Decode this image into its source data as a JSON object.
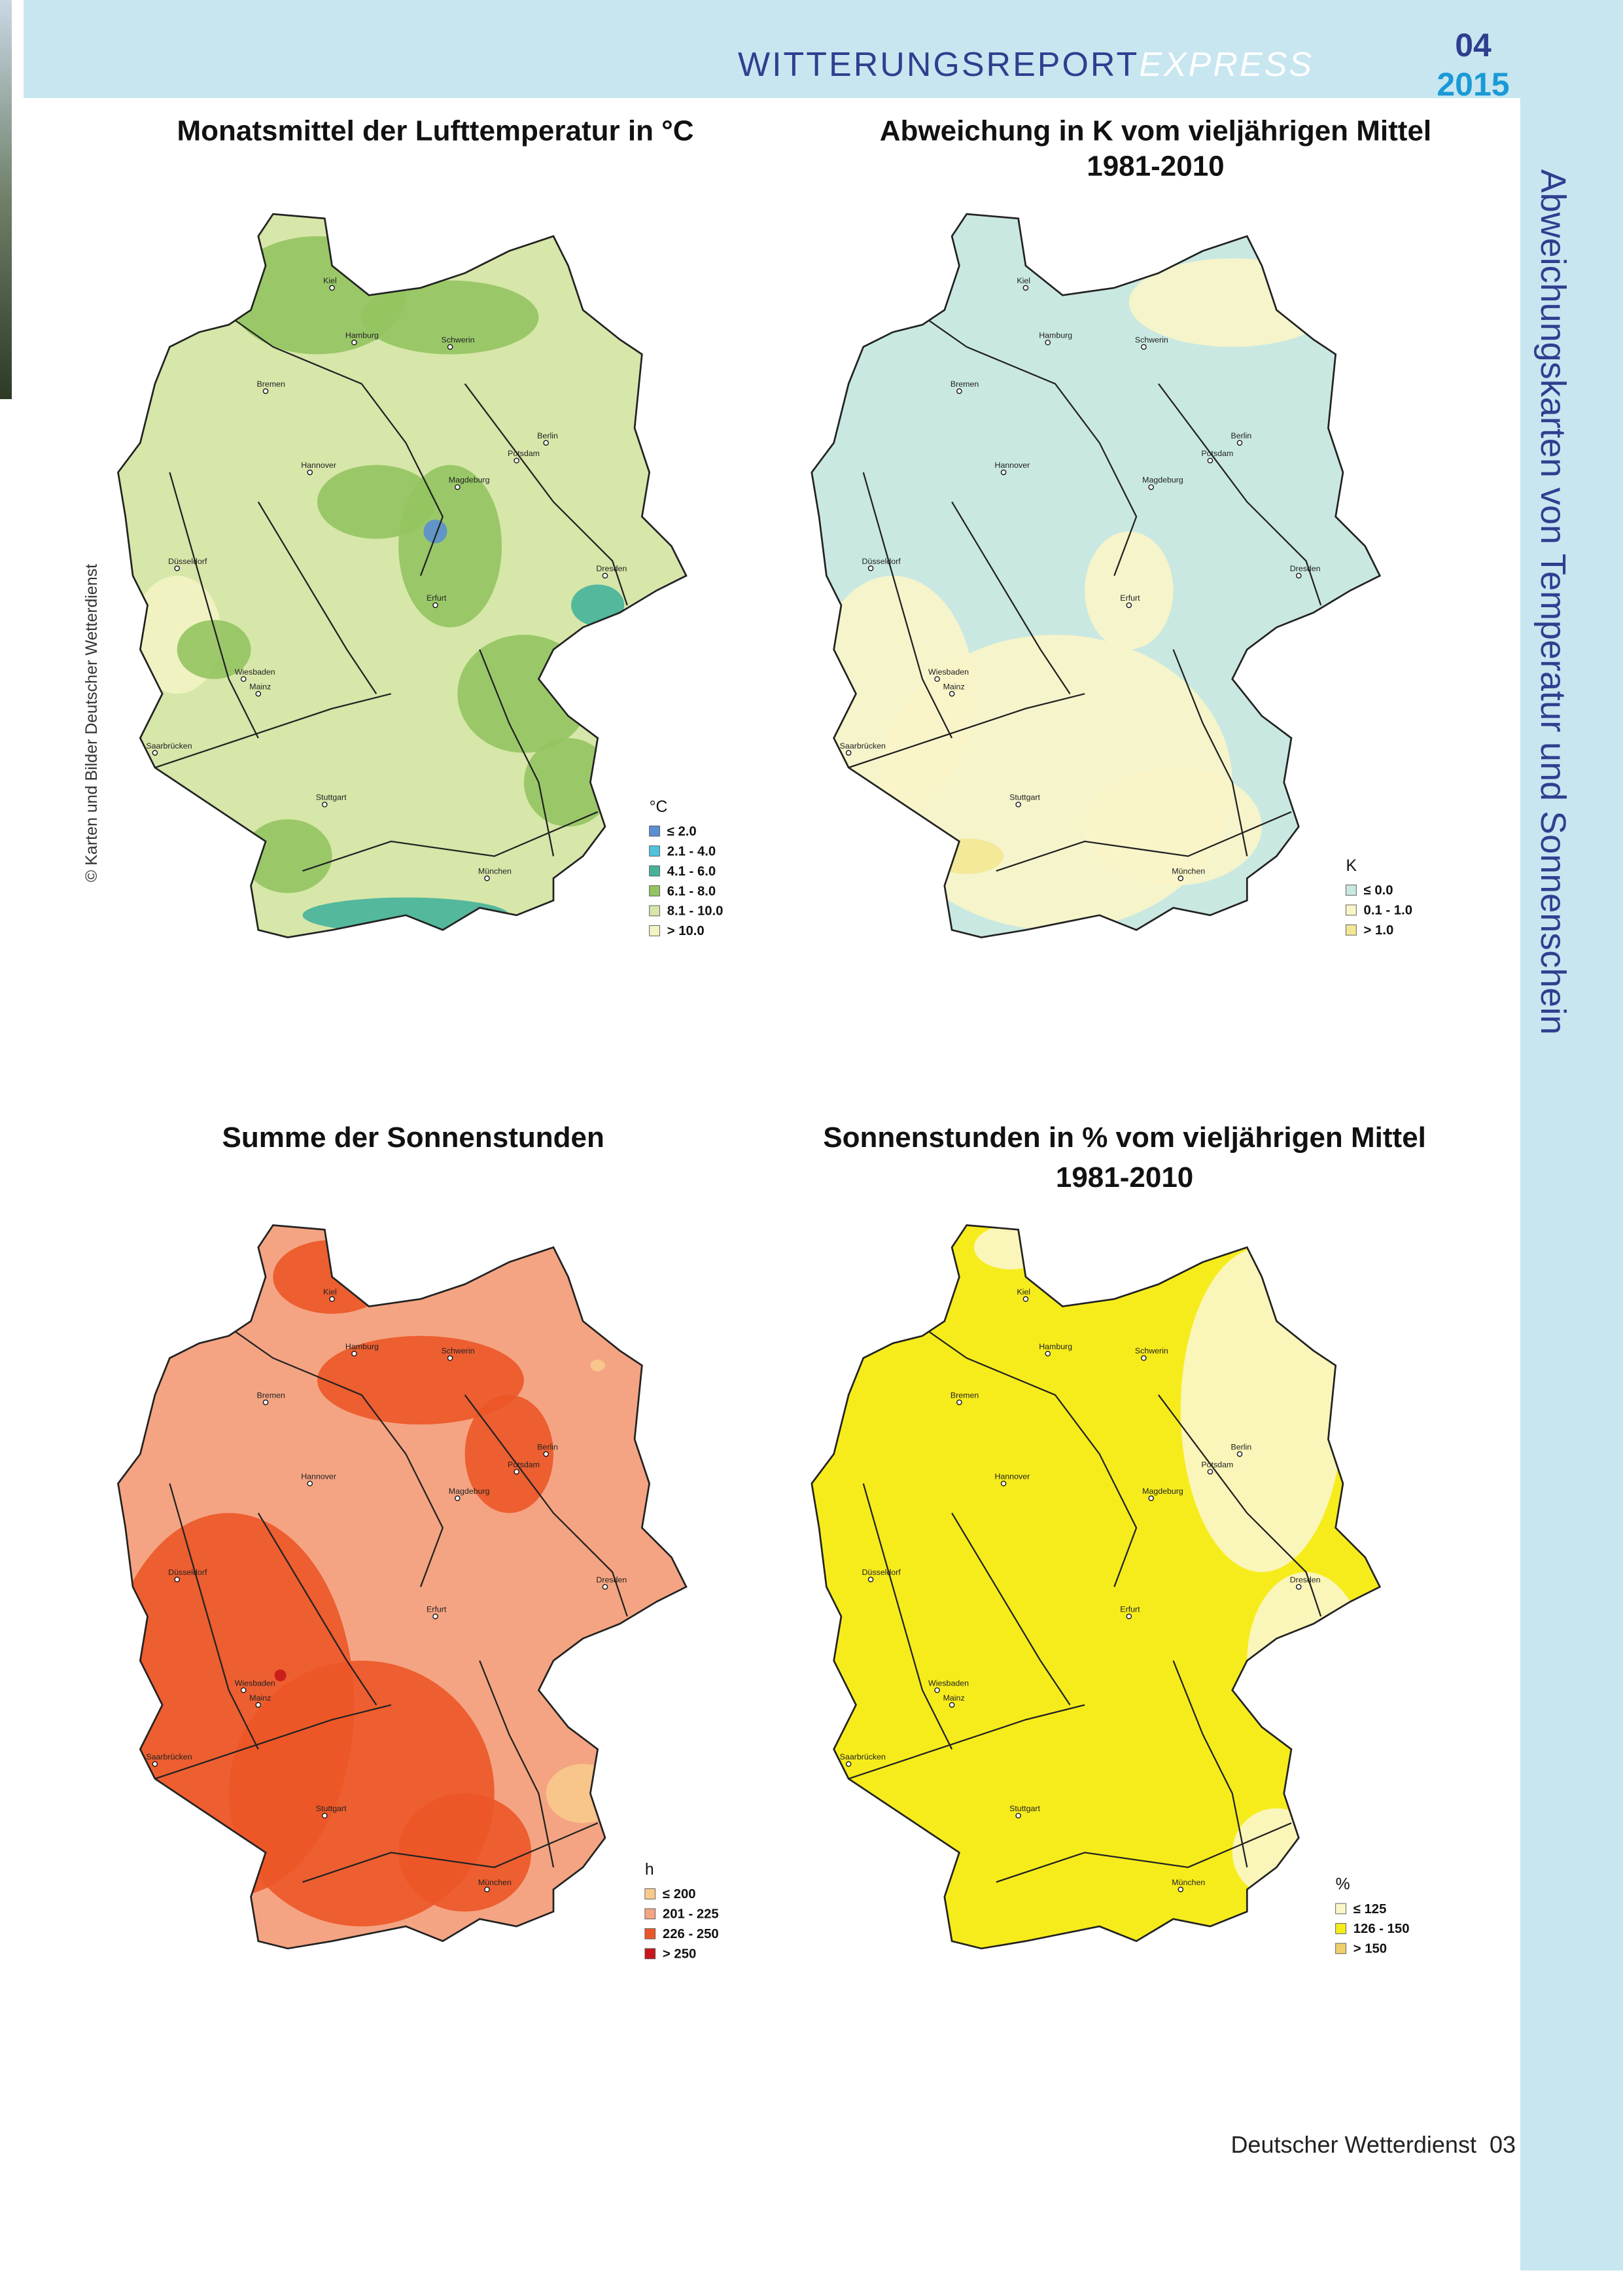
{
  "header": {
    "title": "WITTERUNGSREPORT",
    "title_suffix": "EXPRESS",
    "issue": "04",
    "year": "2015"
  },
  "side_title": "Abweichungskarten von Temperatur und Sonnenschein",
  "credit": "© Karten und Bilder Deutscher Wetterdienst",
  "cities": [
    "Kiel",
    "Hamburg",
    "Schwerin",
    "Bremen",
    "Berlin",
    "Potsdam",
    "Hannover",
    "Magdeburg",
    "Düsseldorf",
    "Erfurt",
    "Dresden",
    "Wiesbaden",
    "Mainz",
    "Saarbrücken",
    "Stuttgart",
    "München"
  ],
  "maps": [
    {
      "title": [
        "Monatsmittel der Lufttemperatur in °C"
      ],
      "legend": {
        "unit": "°C",
        "items": [
          {
            "label": "≤ 2.0",
            "color": "#5b8fd0"
          },
          {
            "label": "2.1 - 4.0",
            "color": "#4ec3de"
          },
          {
            "label": "4.1 - 6.0",
            "color": "#45b39a"
          },
          {
            "label": "6.1 - 8.0",
            "color": "#93c460"
          },
          {
            "label": "8.1 - 10.0",
            "color": "#d7e6a9"
          },
          {
            "label": "> 10.0",
            "color": "#f3f3c4"
          }
        ]
      }
    },
    {
      "title": [
        "Abweichung in K vom vieljährigen Mittel",
        "1981-2010"
      ],
      "legend": {
        "unit": "K",
        "items": [
          {
            "label": "≤ 0.0",
            "color": "#c9e8e1"
          },
          {
            "label": "0.1 - 1.0",
            "color": "#faf5c9"
          },
          {
            "label": "> 1.0",
            "color": "#f4e794"
          }
        ]
      }
    },
    {
      "title": [
        "Summe der Sonnenstunden"
      ],
      "legend": {
        "unit": "h",
        "items": [
          {
            "label": "≤ 200",
            "color": "#f8c98c"
          },
          {
            "label": "201 - 225",
            "color": "#f4a482"
          },
          {
            "label": "226 - 250",
            "color": "#ec5727"
          },
          {
            "label": "> 250",
            "color": "#c8161c"
          }
        ]
      }
    },
    {
      "title": [
        "Sonnenstunden in % vom vieljährigen Mittel",
        "1981-2010"
      ],
      "legend": {
        "unit": "%",
        "items": [
          {
            "label": "≤ 125",
            "color": "#fbf6ca"
          },
          {
            "label": "126 - 150",
            "color": "#f6ec1c"
          },
          {
            "label": "> 150",
            "color": "#f1cf6c"
          }
        ]
      }
    }
  ],
  "footer": {
    "publisher": "Deutscher Wetterdienst",
    "page": "03"
  }
}
